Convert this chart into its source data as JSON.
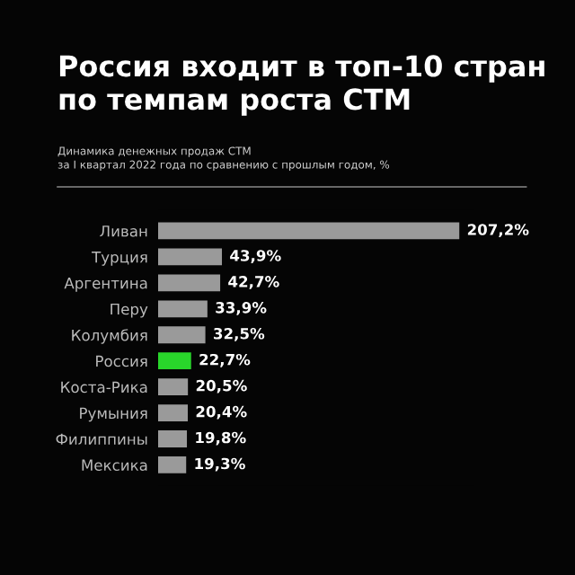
{
  "chart_data": {
    "type": "bar",
    "orientation": "horizontal",
    "title": "Россия входит в топ-10 стран\nпо темпам роста СТМ",
    "subtitle": "Динамика денежных продаж СТМ\nза I квартал 2022 года по сравнению с прошлым годом, %",
    "categories": [
      "Ливан",
      "Турция",
      "Аргентина",
      "Перу",
      "Колумбия",
      "Россия",
      "Коста-Рика",
      "Румыния",
      "Филиппины",
      "Мексика"
    ],
    "values": [
      207.2,
      43.9,
      42.7,
      33.9,
      32.5,
      22.7,
      20.5,
      20.4,
      19.8,
      19.3
    ],
    "colors": [
      "#9a9a9a",
      "#9a9a9a",
      "#9a9a9a",
      "#9a9a9a",
      "#9a9a9a",
      "#29d62b",
      "#9a9a9a",
      "#9a9a9a",
      "#9a9a9a",
      "#9a9a9a"
    ],
    "value_labels": [
      "207,2%",
      "43,9%",
      "42,7%",
      "33,9%",
      "32,5%",
      "22,7%",
      "20,5%",
      "20,4%",
      "19,8%",
      "19,3%"
    ],
    "grid": false,
    "legend": false
  }
}
